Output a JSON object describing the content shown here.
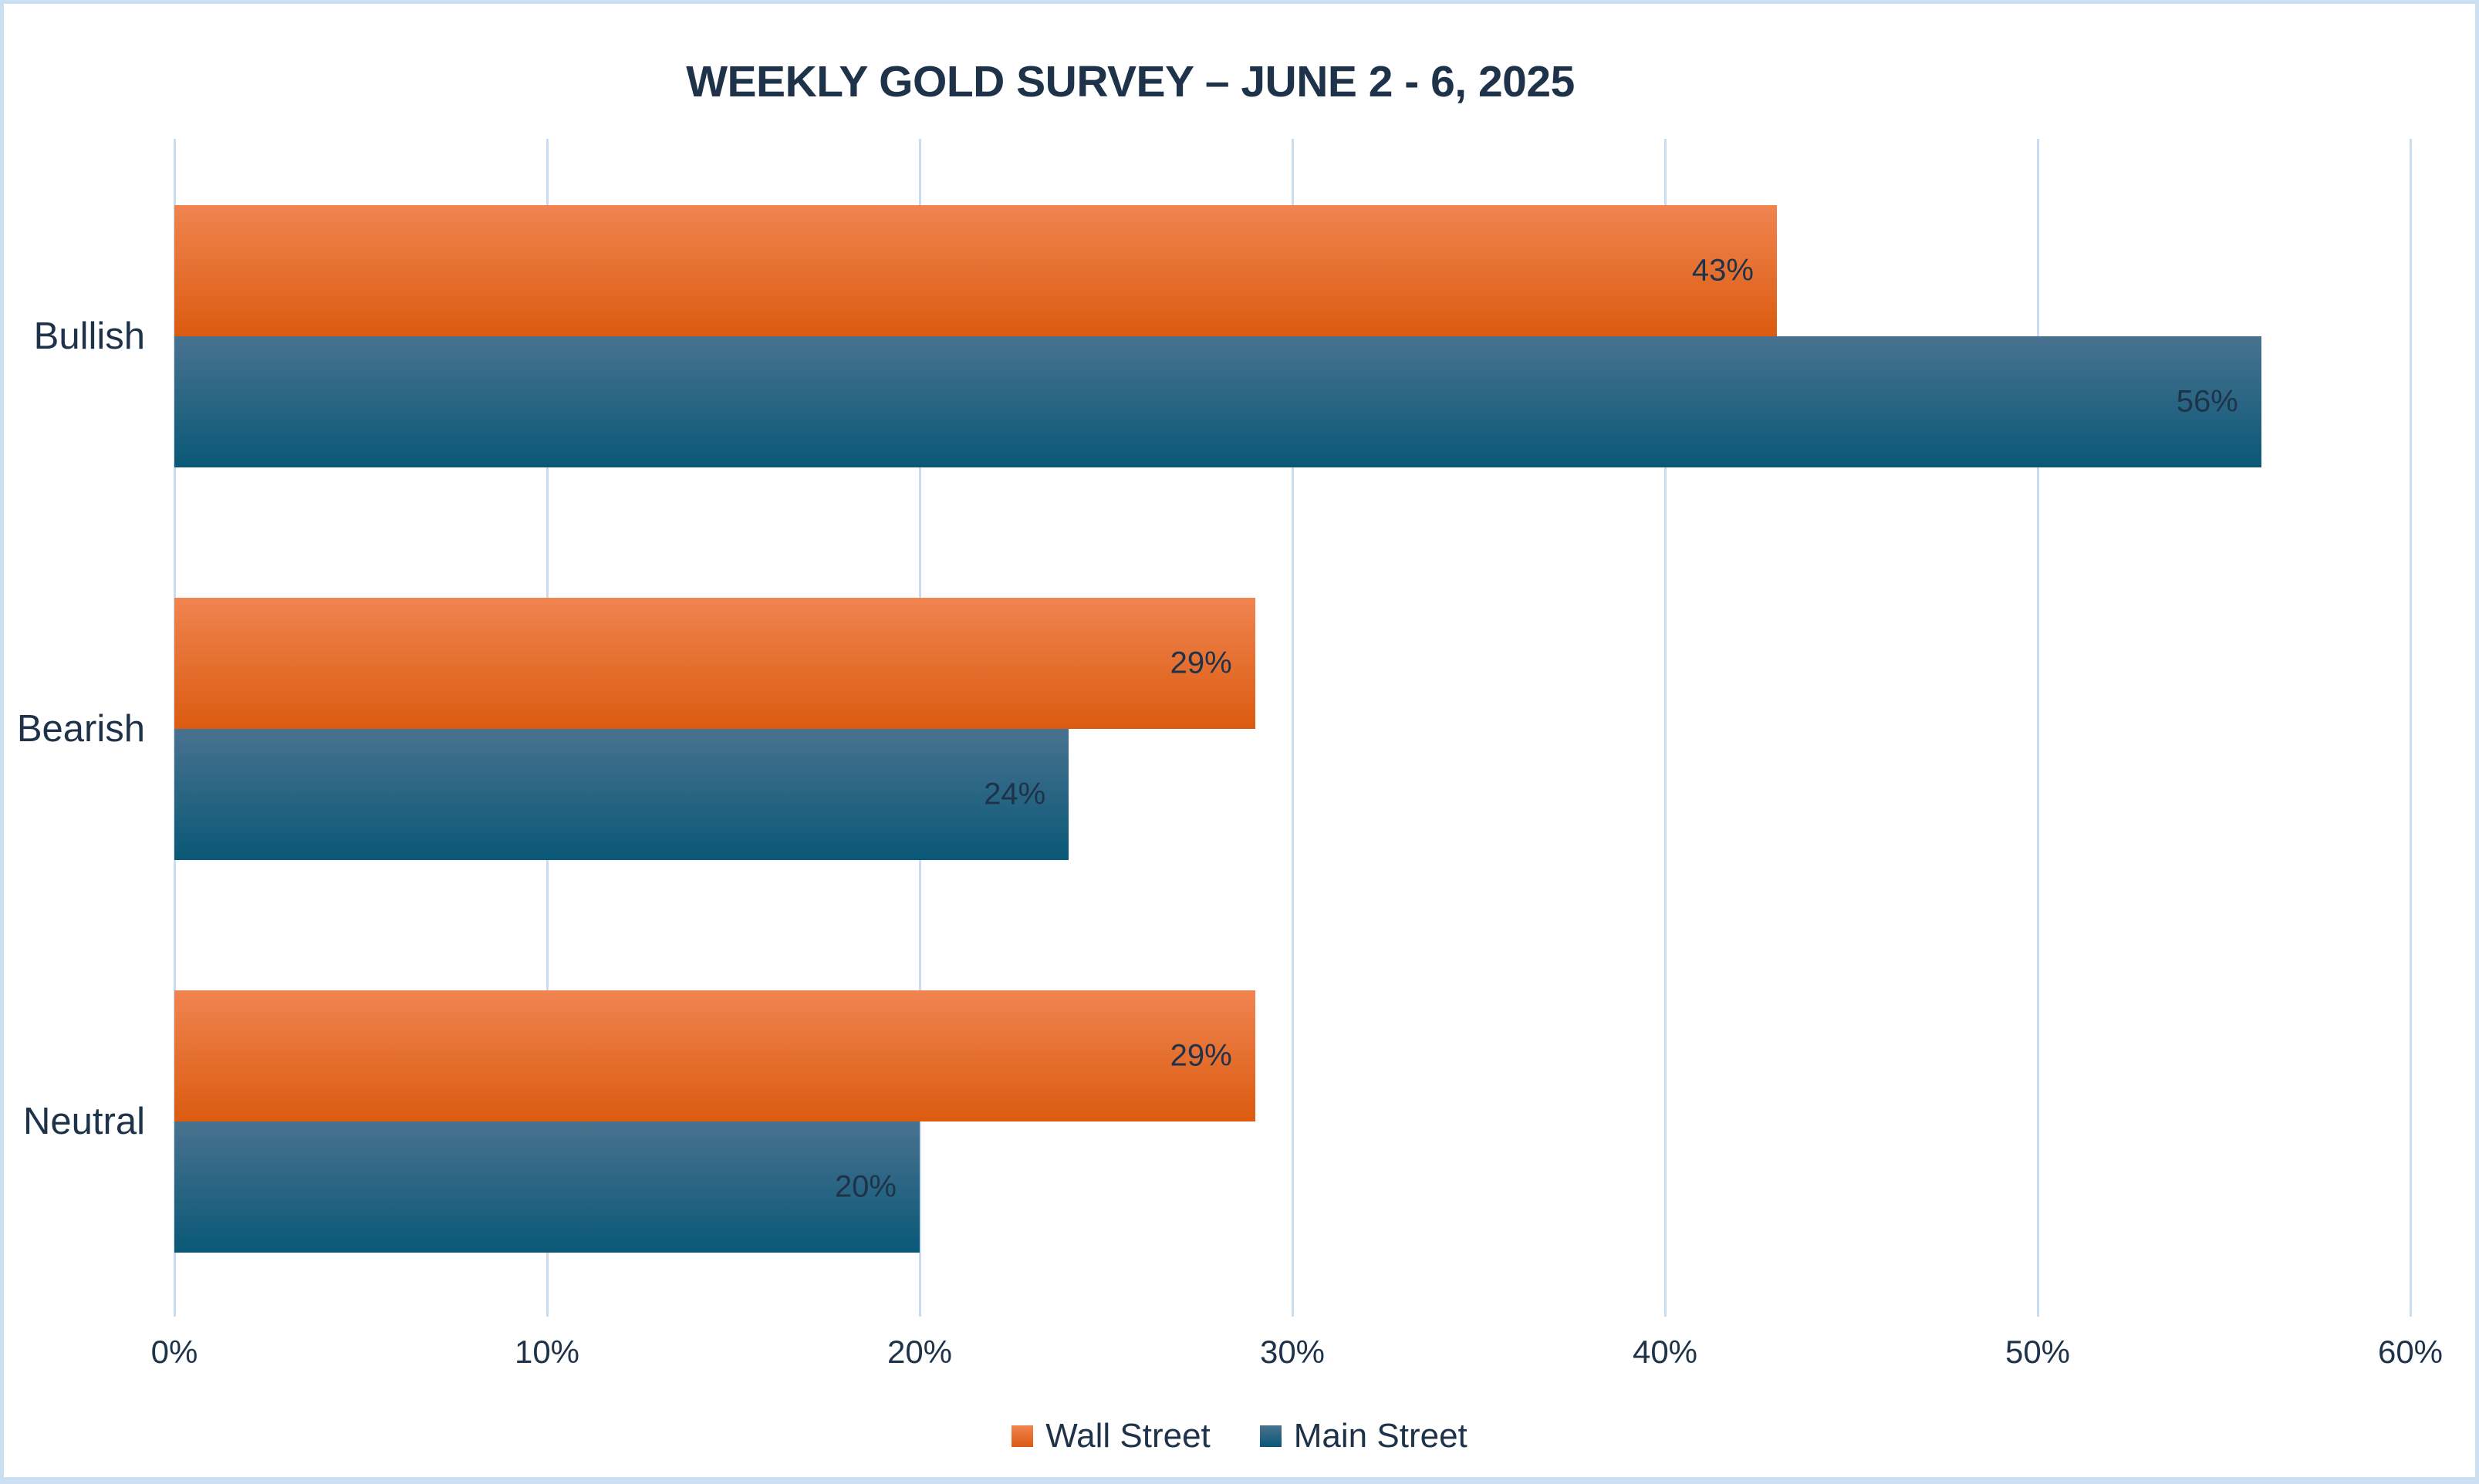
{
  "title": "WEEKLY GOLD SURVEY – JUNE 2 - 6, 2025",
  "chart_data": {
    "type": "bar",
    "orientation": "horizontal",
    "title": "WEEKLY GOLD SURVEY – JUNE 2 - 6, 2025",
    "categories": [
      "Bullish",
      "Bearish",
      "Neutral"
    ],
    "series": [
      {
        "name": "Wall Street",
        "values": [
          43,
          29,
          29
        ],
        "labels": [
          "43%",
          "29%",
          "29%"
        ],
        "color_top": "#F08450",
        "color_bottom": "#DB5B10"
      },
      {
        "name": "Main Street",
        "values": [
          56,
          24,
          20
        ],
        "labels": [
          "56%",
          "24%",
          "20%"
        ],
        "color_top": "#48728F",
        "color_bottom": "#0A5877"
      }
    ],
    "x_ticks": [
      "0%",
      "10%",
      "20%",
      "30%",
      "40%",
      "50%",
      "60%"
    ],
    "xlim": [
      0,
      60
    ],
    "grid": true,
    "gridlines": "vertical",
    "legend_position": "bottom",
    "data_labels": "inside-end"
  },
  "colors": {
    "text": "#1E3349",
    "gridline": "#C8DDF0",
    "border": "#CADFF2",
    "background": "#FFFFFF"
  }
}
